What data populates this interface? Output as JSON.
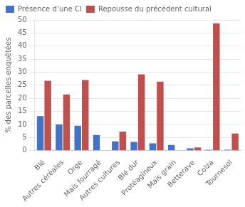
{
  "chart_data": {
    "type": "bar",
    "categories": [
      "Blé",
      "Autres céréales",
      "Orge",
      "Maïs fourragé",
      "Autres cultures",
      "Blé dur",
      "Protéagineux",
      "Maïs grain",
      "Betterave",
      "Colza",
      "Tournesol"
    ],
    "series": [
      {
        "name": "Présence d’une CI",
        "color": "#4472C4",
        "values": [
          13.2,
          10.0,
          9.5,
          6.0,
          3.5,
          3.3,
          2.8,
          2.2,
          0.9,
          0.3,
          0.3
        ]
      },
      {
        "name": "Repousse du précédent cultural",
        "color": "#C0504D",
        "values": [
          26.7,
          21.5,
          27.0,
          0.0,
          7.3,
          29.2,
          26.4,
          0.0,
          1.2,
          48.7,
          6.5
        ]
      }
    ],
    "ylabel": "% des parcelles enquêtées",
    "ylim": [
      0,
      50
    ],
    "yticks": [
      0,
      5,
      10,
      15,
      20,
      25,
      30,
      35,
      40,
      45,
      50
    ],
    "grid": true,
    "legend": "upper left"
  }
}
